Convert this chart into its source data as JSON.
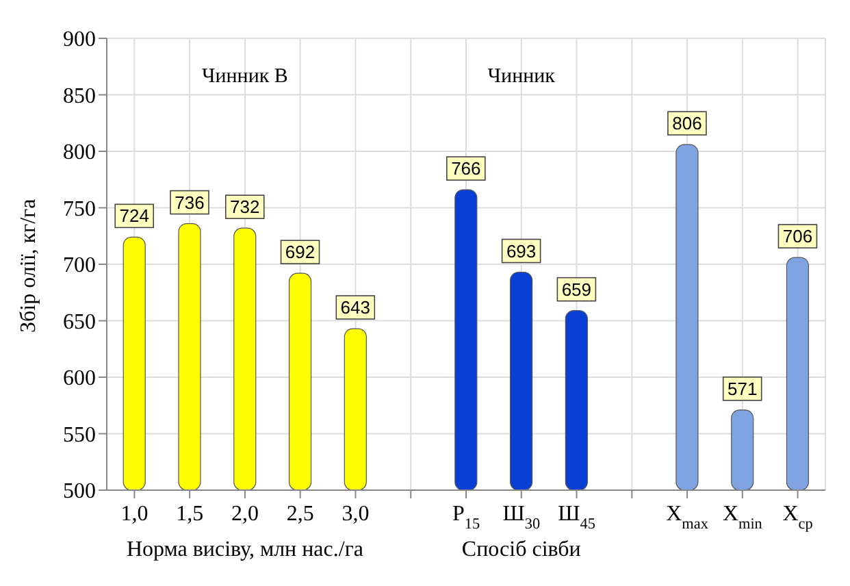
{
  "chart_data": {
    "type": "bar",
    "ylabel": "Збір олії, кг/га",
    "xlabel": "Норма висіву, млн нас./га",
    "annotations": [
      "Чинник В",
      "Чинник",
      "Спосіб сівби"
    ],
    "categories": [
      "1,0",
      "1,5",
      "2,0",
      "2,5",
      "3,0",
      null,
      "Р$_{15}$",
      "Ш$_{30}$",
      "Ш$_{45}$",
      null,
      "X$_{max}$",
      "X$_{min}$",
      "X$_{ср}$"
    ],
    "values": [
      724,
      736,
      732,
      692,
      643,
      null,
      766,
      693,
      659,
      null,
      806,
      571,
      706
    ],
    "colors": [
      "#ffff00",
      "#ffff00",
      "#ffff00",
      "#ffff00",
      "#ffff00",
      "#ffffff",
      "#0a3fd6",
      "#0a3fd6",
      "#0a3fd6",
      "#ffffff",
      "#7fa3e0",
      "#7fa3e0",
      "#7fa3e0"
    ],
    "ylim": [
      500,
      900
    ],
    "yticks": [
      500,
      550,
      600,
      650,
      700,
      750,
      800,
      850,
      900
    ],
    "grid": true,
    "data_labels": true
  }
}
